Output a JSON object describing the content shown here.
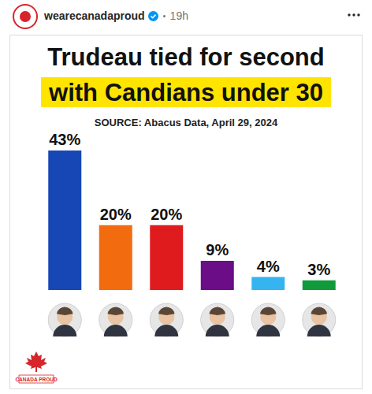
{
  "post": {
    "account": "wearecanadaproud",
    "time": "19h"
  },
  "chart_data": {
    "type": "bar",
    "title": "Trudeau tied for second\nwith Candians under 30",
    "subtitle": "SOURCE: Abacus Data, April 29, 2024",
    "categories": [
      null,
      null,
      null,
      null,
      null,
      null
    ],
    "values": [
      43,
      20,
      20,
      9,
      4,
      3
    ],
    "value_labels": [
      "43%",
      "20%",
      "20%",
      "9%",
      "4%",
      "3%"
    ],
    "colors": [
      "#1747b4",
      "#f26b0f",
      "#e01b1e",
      "#6a0d86",
      "#36b4ef",
      "#109a3c"
    ],
    "ylim": [
      0,
      43
    ],
    "grid": false,
    "tick_labels": false,
    "data_labels": true,
    "annotations": [
      "CANADA PROUD"
    ]
  }
}
